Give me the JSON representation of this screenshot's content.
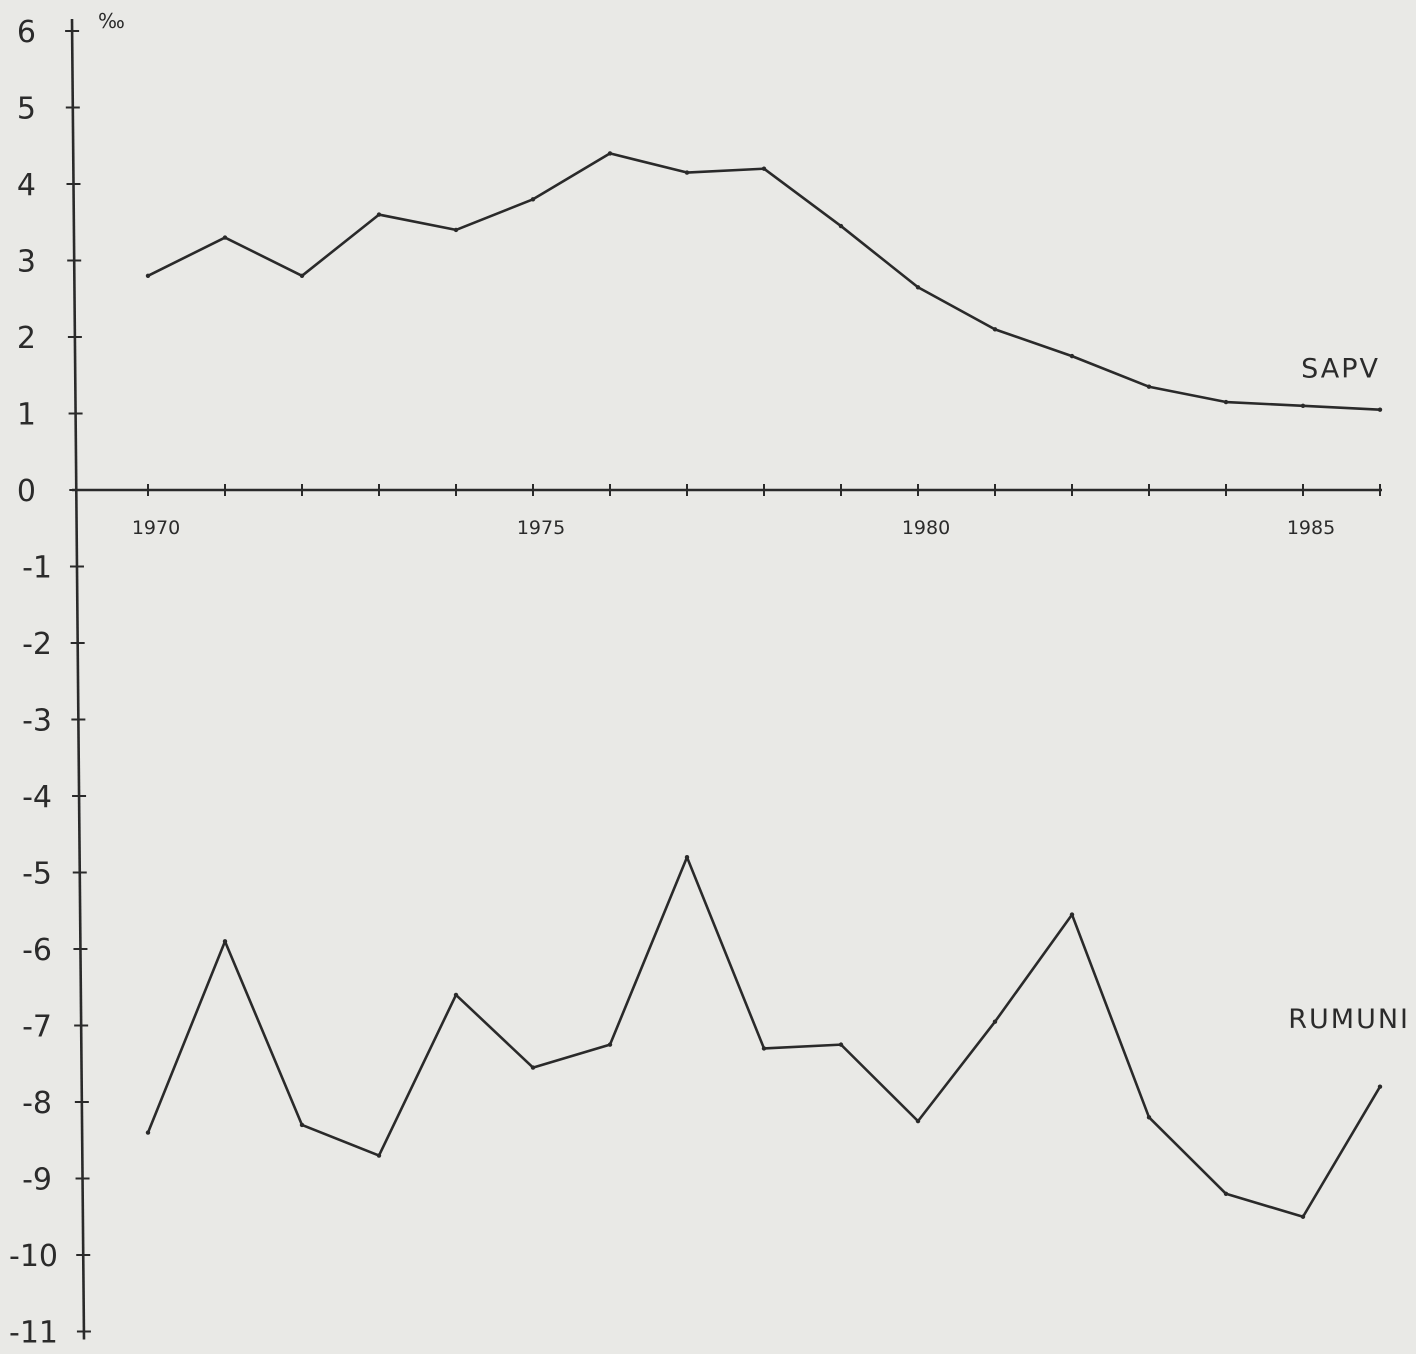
{
  "chart_data": {
    "type": "line",
    "unit_label": "‰",
    "x_ticks": [
      1970,
      1971,
      1972,
      1973,
      1974,
      1975,
      1976,
      1977,
      1978,
      1979,
      1980,
      1981,
      1982,
      1983,
      1984,
      1985,
      1986
    ],
    "x_tick_labels": [
      "1970",
      "1975",
      "1980",
      "1985"
    ],
    "y_ticks": [
      6,
      5,
      4,
      3,
      2,
      1,
      0,
      -1,
      -2,
      -3,
      -4,
      -5,
      -6,
      -7,
      -8,
      -9,
      -10,
      -11
    ],
    "ylim": [
      -11,
      6
    ],
    "xlim": [
      1969,
      1986
    ],
    "grid": false,
    "legend": "none",
    "series": [
      {
        "name": "SAPV",
        "x": [
          1970,
          1971,
          1972,
          1973,
          1974,
          1975,
          1976,
          1977,
          1978,
          1979,
          1980,
          1981,
          1982,
          1983,
          1984,
          1985,
          1986
        ],
        "values": [
          2.8,
          3.3,
          2.8,
          3.6,
          3.4,
          3.8,
          4.4,
          4.15,
          4.2,
          3.45,
          2.65,
          2.1,
          1.75,
          1.35,
          1.15,
          1.1,
          1.05
        ]
      },
      {
        "name": "RUMUNI",
        "x": [
          1970,
          1971,
          1972,
          1973,
          1974,
          1975,
          1976,
          1977,
          1978,
          1979,
          1980,
          1981,
          1982,
          1983,
          1984,
          1985,
          1986
        ],
        "values": [
          -8.4,
          -5.9,
          -8.3,
          -8.7,
          -6.6,
          -7.55,
          -7.25,
          -4.8,
          -7.3,
          -7.25,
          -8.25,
          -6.95,
          -5.55,
          -8.2,
          -9.2,
          -9.5,
          -7.8
        ]
      }
    ]
  }
}
